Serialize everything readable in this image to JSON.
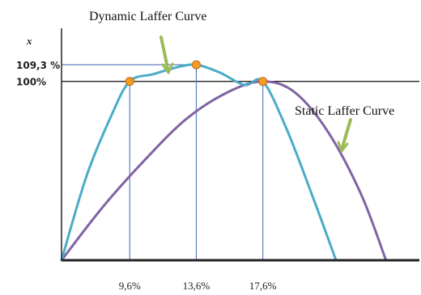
{
  "chart_data": {
    "type": "line",
    "title": "",
    "ylabel": "x",
    "xlabel": "",
    "grid": false,
    "legend": "none",
    "ylim": [
      0,
      109.3
    ],
    "x_ticks": [
      {
        "value": 9.6,
        "label": "9,6%"
      },
      {
        "value": 13.6,
        "label": "13,6%"
      },
      {
        "value": 17.6,
        "label": "17,6%"
      }
    ],
    "y_ticks": [
      {
        "value": 100,
        "label": "100%"
      },
      {
        "value": 109.3,
        "label": "109,3 %"
      }
    ],
    "series": [
      {
        "name": "Dynamic Laffer Curve",
        "color": "#4bacc6",
        "x": [
          5.5,
          7.0,
          8.5,
          9.6,
          11.0,
          12.5,
          13.6,
          15.0,
          16.5,
          17.6,
          19.0,
          20.5,
          22.0
        ],
        "y": [
          0,
          47,
          81,
          100,
          104,
          108,
          109.3,
          105,
          98,
          100,
          74,
          38,
          0
        ]
      },
      {
        "name": "Static Laffer Curve",
        "color": "#8064a2",
        "x": [
          5.5,
          8.0,
          10.5,
          13.0,
          15.5,
          17.6,
          19.5,
          21.5,
          23.5,
          25.0
        ],
        "y": [
          0,
          30,
          56,
          79,
          94,
          100,
          94,
          72,
          37,
          0
        ]
      }
    ],
    "points": [
      {
        "x": 9.6,
        "y": 100
      },
      {
        "x": 13.6,
        "y": 109.3
      },
      {
        "x": 17.6,
        "y": 100
      }
    ],
    "annotations": [
      {
        "text": "Dynamic Laffer Curve",
        "color": "#9bbb59"
      },
      {
        "text": "Static Laffer Curve",
        "color": "#9bbb59"
      }
    ]
  }
}
